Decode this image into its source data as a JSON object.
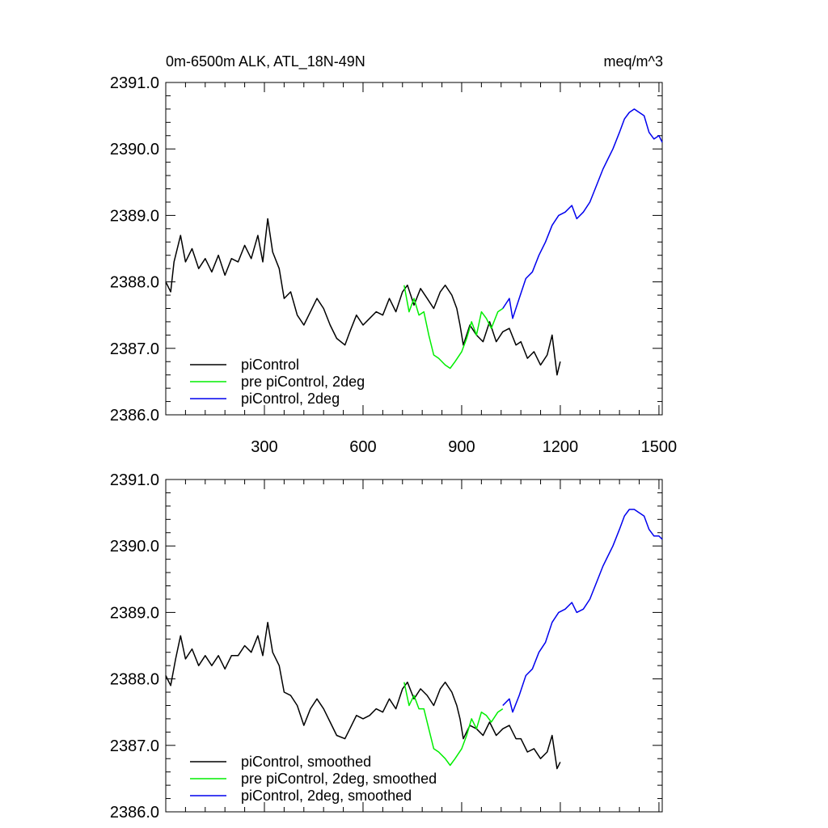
{
  "chart_data": [
    {
      "type": "line",
      "title": "0m-6500m ALK, ATL_18N-49N",
      "title_right": "meq/m^3",
      "xlim": [
        0,
        1510
      ],
      "ylim": [
        2386.0,
        2391.0
      ],
      "xticks": [
        300,
        600,
        900,
        1200,
        1500
      ],
      "xtick_labels": [
        "300",
        "600",
        "900",
        "1200",
        "1500"
      ],
      "yticks": [
        2386.0,
        2387.0,
        2388.0,
        2389.0,
        2390.0,
        2391.0
      ],
      "ytick_labels": [
        "2386.0",
        "2387.0",
        "2388.0",
        "2389.0",
        "2390.0",
        "2391.0"
      ],
      "grid": false,
      "legend_position": "bottom-left",
      "series": [
        {
          "name": "piControl",
          "color": "#000000",
          "points": [
            [
              0,
              2388.0
            ],
            [
              15,
              2387.85
            ],
            [
              25,
              2388.3
            ],
            [
              45,
              2388.7
            ],
            [
              60,
              2388.3
            ],
            [
              80,
              2388.5
            ],
            [
              100,
              2388.2
            ],
            [
              120,
              2388.35
            ],
            [
              140,
              2388.15
            ],
            [
              160,
              2388.4
            ],
            [
              180,
              2388.1
            ],
            [
              200,
              2388.35
            ],
            [
              220,
              2388.3
            ],
            [
              240,
              2388.55
            ],
            [
              260,
              2388.35
            ],
            [
              280,
              2388.7
            ],
            [
              295,
              2388.3
            ],
            [
              310,
              2388.95
            ],
            [
              325,
              2388.45
            ],
            [
              345,
              2388.2
            ],
            [
              360,
              2387.75
            ],
            [
              380,
              2387.85
            ],
            [
              400,
              2387.5
            ],
            [
              420,
              2387.35
            ],
            [
              440,
              2387.55
            ],
            [
              460,
              2387.75
            ],
            [
              480,
              2387.6
            ],
            [
              500,
              2387.35
            ],
            [
              520,
              2387.15
            ],
            [
              545,
              2387.05
            ],
            [
              560,
              2387.25
            ],
            [
              580,
              2387.5
            ],
            [
              600,
              2387.35
            ],
            [
              620,
              2387.45
            ],
            [
              640,
              2387.55
            ],
            [
              660,
              2387.5
            ],
            [
              680,
              2387.75
            ],
            [
              700,
              2387.55
            ],
            [
              720,
              2387.85
            ],
            [
              735,
              2387.95
            ],
            [
              755,
              2387.65
            ],
            [
              775,
              2387.9
            ],
            [
              795,
              2387.75
            ],
            [
              815,
              2387.6
            ],
            [
              835,
              2387.85
            ],
            [
              850,
              2387.95
            ],
            [
              870,
              2387.8
            ],
            [
              885,
              2387.6
            ],
            [
              895,
              2387.35
            ],
            [
              905,
              2387.05
            ],
            [
              925,
              2387.35
            ],
            [
              945,
              2387.2
            ],
            [
              965,
              2387.1
            ],
            [
              985,
              2387.4
            ],
            [
              1005,
              2387.1
            ],
            [
              1025,
              2387.25
            ],
            [
              1045,
              2387.3
            ],
            [
              1065,
              2387.05
            ],
            [
              1080,
              2387.1
            ],
            [
              1100,
              2386.85
            ],
            [
              1120,
              2386.95
            ],
            [
              1140,
              2386.75
            ],
            [
              1160,
              2386.9
            ],
            [
              1175,
              2387.2
            ],
            [
              1190,
              2386.6
            ],
            [
              1200,
              2386.8
            ]
          ]
        },
        {
          "name": "pre piControl, 2deg",
          "color": "#00ee00",
          "points": [
            [
              725,
              2387.95
            ],
            [
              740,
              2387.55
            ],
            [
              755,
              2387.75
            ],
            [
              770,
              2387.5
            ],
            [
              785,
              2387.55
            ],
            [
              800,
              2387.2
            ],
            [
              815,
              2386.9
            ],
            [
              830,
              2386.85
            ],
            [
              850,
              2386.75
            ],
            [
              865,
              2386.7
            ],
            [
              880,
              2386.8
            ],
            [
              900,
              2386.95
            ],
            [
              915,
              2387.15
            ],
            [
              930,
              2387.4
            ],
            [
              945,
              2387.2
            ],
            [
              960,
              2387.55
            ],
            [
              975,
              2387.45
            ],
            [
              990,
              2387.3
            ],
            [
              1010,
              2387.55
            ],
            [
              1025,
              2387.6
            ]
          ]
        },
        {
          "name": "piControl, 2deg",
          "color": "#0000ee",
          "points": [
            [
              1025,
              2387.6
            ],
            [
              1045,
              2387.75
            ],
            [
              1055,
              2387.45
            ],
            [
              1075,
              2387.75
            ],
            [
              1095,
              2388.05
            ],
            [
              1115,
              2388.15
            ],
            [
              1135,
              2388.4
            ],
            [
              1155,
              2388.6
            ],
            [
              1175,
              2388.85
            ],
            [
              1195,
              2389.0
            ],
            [
              1215,
              2389.05
            ],
            [
              1235,
              2389.15
            ],
            [
              1250,
              2388.95
            ],
            [
              1270,
              2389.05
            ],
            [
              1290,
              2389.2
            ],
            [
              1310,
              2389.45
            ],
            [
              1330,
              2389.7
            ],
            [
              1345,
              2389.85
            ],
            [
              1360,
              2390.0
            ],
            [
              1380,
              2390.25
            ],
            [
              1395,
              2390.45
            ],
            [
              1410,
              2390.55
            ],
            [
              1425,
              2390.6
            ],
            [
              1440,
              2390.55
            ],
            [
              1455,
              2390.5
            ],
            [
              1470,
              2390.25
            ],
            [
              1485,
              2390.15
            ],
            [
              1500,
              2390.2
            ],
            [
              1510,
              2390.1
            ]
          ]
        }
      ]
    },
    {
      "type": "line",
      "title": "",
      "xlim": [
        0,
        1510
      ],
      "ylim": [
        2386.0,
        2391.0
      ],
      "xticks": [
        300,
        600,
        900,
        1200,
        1500
      ],
      "yticks": [
        2386.0,
        2387.0,
        2388.0,
        2389.0,
        2390.0,
        2391.0
      ],
      "ytick_labels": [
        "2386.0",
        "2387.0",
        "2388.0",
        "2389.0",
        "2390.0",
        "2391.0"
      ],
      "grid": false,
      "legend_position": "bottom-left",
      "series": [
        {
          "name": "piControl, smoothed",
          "color": "#000000",
          "points": [
            [
              0,
              2388.05
            ],
            [
              15,
              2387.9
            ],
            [
              30,
              2388.3
            ],
            [
              45,
              2388.65
            ],
            [
              60,
              2388.3
            ],
            [
              80,
              2388.45
            ],
            [
              100,
              2388.2
            ],
            [
              120,
              2388.35
            ],
            [
              140,
              2388.2
            ],
            [
              160,
              2388.35
            ],
            [
              180,
              2388.15
            ],
            [
              200,
              2388.35
            ],
            [
              220,
              2388.35
            ],
            [
              240,
              2388.5
            ],
            [
              260,
              2388.4
            ],
            [
              280,
              2388.65
            ],
            [
              295,
              2388.35
            ],
            [
              310,
              2388.85
            ],
            [
              325,
              2388.4
            ],
            [
              345,
              2388.2
            ],
            [
              360,
              2387.8
            ],
            [
              380,
              2387.75
            ],
            [
              400,
              2387.6
            ],
            [
              420,
              2387.3
            ],
            [
              440,
              2387.55
            ],
            [
              460,
              2387.7
            ],
            [
              480,
              2387.55
            ],
            [
              500,
              2387.35
            ],
            [
              520,
              2387.15
            ],
            [
              545,
              2387.1
            ],
            [
              560,
              2387.25
            ],
            [
              580,
              2387.45
            ],
            [
              600,
              2387.4
            ],
            [
              620,
              2387.45
            ],
            [
              640,
              2387.55
            ],
            [
              660,
              2387.5
            ],
            [
              680,
              2387.7
            ],
            [
              700,
              2387.55
            ],
            [
              720,
              2387.85
            ],
            [
              735,
              2387.95
            ],
            [
              755,
              2387.7
            ],
            [
              775,
              2387.85
            ],
            [
              795,
              2387.75
            ],
            [
              815,
              2387.6
            ],
            [
              835,
              2387.85
            ],
            [
              850,
              2387.95
            ],
            [
              870,
              2387.8
            ],
            [
              885,
              2387.6
            ],
            [
              895,
              2387.4
            ],
            [
              905,
              2387.1
            ],
            [
              925,
              2387.3
            ],
            [
              945,
              2387.25
            ],
            [
              965,
              2387.15
            ],
            [
              985,
              2387.35
            ],
            [
              1005,
              2387.15
            ],
            [
              1025,
              2387.25
            ],
            [
              1045,
              2387.3
            ],
            [
              1065,
              2387.1
            ],
            [
              1080,
              2387.1
            ],
            [
              1100,
              2386.9
            ],
            [
              1120,
              2386.95
            ],
            [
              1140,
              2386.8
            ],
            [
              1160,
              2386.9
            ],
            [
              1175,
              2387.15
            ],
            [
              1190,
              2386.65
            ],
            [
              1200,
              2386.75
            ]
          ]
        },
        {
          "name": "pre piControl, 2deg, smoothed",
          "color": "#00ee00",
          "points": [
            [
              725,
              2387.95
            ],
            [
              740,
              2387.6
            ],
            [
              755,
              2387.75
            ],
            [
              770,
              2387.55
            ],
            [
              785,
              2387.55
            ],
            [
              800,
              2387.25
            ],
            [
              815,
              2386.95
            ],
            [
              830,
              2386.9
            ],
            [
              850,
              2386.8
            ],
            [
              865,
              2386.7
            ],
            [
              880,
              2386.8
            ],
            [
              900,
              2386.95
            ],
            [
              915,
              2387.15
            ],
            [
              930,
              2387.4
            ],
            [
              945,
              2387.25
            ],
            [
              960,
              2387.5
            ],
            [
              975,
              2387.45
            ],
            [
              990,
              2387.35
            ],
            [
              1010,
              2387.5
            ],
            [
              1025,
              2387.55
            ]
          ]
        },
        {
          "name": "piControl, 2deg, smoothed",
          "color": "#0000ee",
          "points": [
            [
              1025,
              2387.6
            ],
            [
              1045,
              2387.7
            ],
            [
              1055,
              2387.5
            ],
            [
              1075,
              2387.75
            ],
            [
              1095,
              2388.05
            ],
            [
              1115,
              2388.15
            ],
            [
              1135,
              2388.4
            ],
            [
              1155,
              2388.55
            ],
            [
              1175,
              2388.85
            ],
            [
              1195,
              2389.0
            ],
            [
              1215,
              2389.05
            ],
            [
              1235,
              2389.15
            ],
            [
              1250,
              2389.0
            ],
            [
              1270,
              2389.05
            ],
            [
              1290,
              2389.2
            ],
            [
              1310,
              2389.45
            ],
            [
              1330,
              2389.7
            ],
            [
              1345,
              2389.85
            ],
            [
              1360,
              2390.0
            ],
            [
              1380,
              2390.25
            ],
            [
              1395,
              2390.45
            ],
            [
              1410,
              2390.55
            ],
            [
              1425,
              2390.55
            ],
            [
              1440,
              2390.5
            ],
            [
              1455,
              2390.45
            ],
            [
              1470,
              2390.25
            ],
            [
              1485,
              2390.15
            ],
            [
              1500,
              2390.15
            ],
            [
              1510,
              2390.1
            ]
          ]
        }
      ]
    }
  ]
}
